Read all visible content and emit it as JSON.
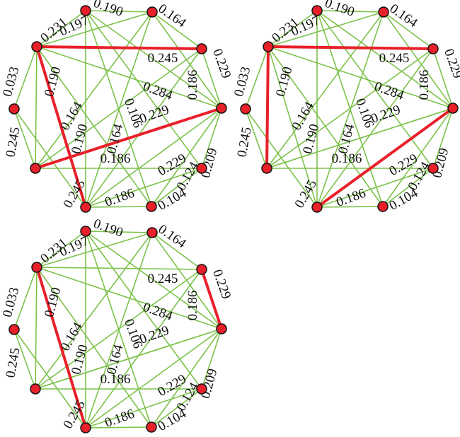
{
  "colors": {
    "edge": "#7cc24a",
    "highlight": "#e8202a",
    "node_fill": "#e8202a",
    "node_stroke": "#111111"
  },
  "graph": {
    "nodes": [
      "n1",
      "n2",
      "n3",
      "n4",
      "n5",
      "n6",
      "n7",
      "n8",
      "n9",
      "n10"
    ],
    "edges": [
      {
        "id": "e1_2",
        "from": "n1",
        "to": "n2",
        "label": "0.190"
      },
      {
        "id": "e1_3",
        "from": "n1",
        "to": "n3",
        "label": "0.197"
      },
      {
        "id": "e1_5",
        "from": "n1",
        "to": "n5",
        "label": ""
      },
      {
        "id": "e1_7",
        "from": "n1",
        "to": "n7",
        "label": "0.106"
      },
      {
        "id": "e1_10",
        "from": "n1",
        "to": "n10",
        "label": ""
      },
      {
        "id": "e2_4",
        "from": "n2",
        "to": "n4",
        "label": "0.164"
      },
      {
        "id": "e2_7",
        "from": "n2",
        "to": "n7",
        "label": ""
      },
      {
        "id": "e2_8",
        "from": "n2",
        "to": "n8",
        "label": "0.190"
      },
      {
        "id": "e2_9",
        "from": "n2",
        "to": "n9",
        "label": ""
      },
      {
        "id": "e3_4",
        "from": "n3",
        "to": "n4",
        "label": "0.245"
      },
      {
        "id": "e3_5",
        "from": "n3",
        "to": "n5",
        "label": "0.284"
      },
      {
        "id": "e3_6",
        "from": "n3",
        "to": "n6",
        "label": "0.033"
      },
      {
        "id": "e3_8",
        "from": "n3",
        "to": "n8",
        "label": "0.245"
      },
      {
        "id": "e3_9",
        "from": "n3",
        "to": "n9",
        "label": ""
      },
      {
        "id": "e3_1",
        "from": "n3",
        "to": "n1",
        "label": "0.231"
      },
      {
        "id": "e4_5",
        "from": "n4",
        "to": "n5",
        "label": "0.229"
      },
      {
        "id": "e4_7",
        "from": "n4",
        "to": "n7",
        "label": "0.186"
      },
      {
        "id": "e5_8",
        "from": "n5",
        "to": "n8",
        "label": "0.229"
      },
      {
        "id": "e5_10",
        "from": "n5",
        "to": "n10",
        "label": "0.209"
      },
      {
        "id": "e5_9",
        "from": "n5",
        "to": "n9",
        "label": ""
      },
      {
        "id": "e7_8",
        "from": "n7",
        "to": "n8",
        "label": ""
      },
      {
        "id": "e7_9",
        "from": "n7",
        "to": "n9",
        "label": "0.124"
      },
      {
        "id": "e8_9",
        "from": "n8",
        "to": "n9",
        "label": "0.186"
      },
      {
        "id": "e9_10",
        "from": "n9",
        "to": "n10",
        "label": "0.104"
      },
      {
        "id": "e2_5",
        "from": "n2",
        "to": "n5",
        "label": "0.186"
      },
      {
        "id": "e2_3",
        "from": "n2",
        "to": "n3",
        "label": "0.245"
      },
      {
        "id": "e8_4",
        "from": "n8",
        "to": "n4",
        "label": "0.164"
      },
      {
        "id": "e8_6",
        "from": "n8",
        "to": "n6",
        "label": "0.245"
      },
      {
        "id": "e10_7",
        "from": "n10",
        "to": "n7",
        "label": ""
      },
      {
        "id": "e4_6",
        "from": "n4",
        "to": "n6",
        "label": "0.164"
      },
      {
        "id": "e9_4",
        "from": "n9",
        "to": "n4",
        "label": "0.229"
      },
      {
        "id": "e1_8",
        "from": "n1",
        "to": "n8",
        "label": "0.190"
      }
    ]
  },
  "panels": [
    {
      "id": "panel-1",
      "highlight": [
        "e3_1",
        "e3_8",
        "e3_5b",
        "e4_5"
      ]
    },
    {
      "id": "panel-2",
      "highlight": [
        "e3_1",
        "e3_6",
        "e5_8",
        "e2_5"
      ]
    },
    {
      "id": "panel-3",
      "highlight": [
        "e3_6",
        "e3_8",
        "e2_5"
      ]
    }
  ]
}
